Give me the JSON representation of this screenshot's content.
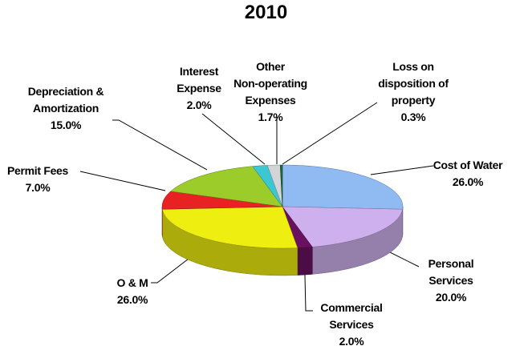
{
  "chart_data": {
    "type": "pie3d",
    "title": "2010",
    "categories": [
      "Cost of Water",
      "Personal\nServices",
      "Commercial\nServices",
      "O & M",
      "Permit Fees",
      "Depreciation &\nAmortization",
      "Interest\nExpense",
      "Other\nNon-operating\nExpenses",
      "Loss on\ndisposition of\nproperty"
    ],
    "values": [
      26.0,
      20.0,
      2.0,
      26.0,
      7.0,
      15.0,
      2.0,
      1.7,
      0.3
    ],
    "value_labels": [
      "26.0%",
      "20.0%",
      "2.0%",
      "26.0%",
      "7.0%",
      "15.0%",
      "2.0%",
      "1.7%",
      "0.3%"
    ],
    "colors": [
      "#8fbaf2",
      "#cfb0ee",
      "#6a1060",
      "#eeee10",
      "#e82222",
      "#9ccc2a",
      "#3cc8d2",
      "#d4d4d8",
      "#1c6a3c"
    ]
  }
}
